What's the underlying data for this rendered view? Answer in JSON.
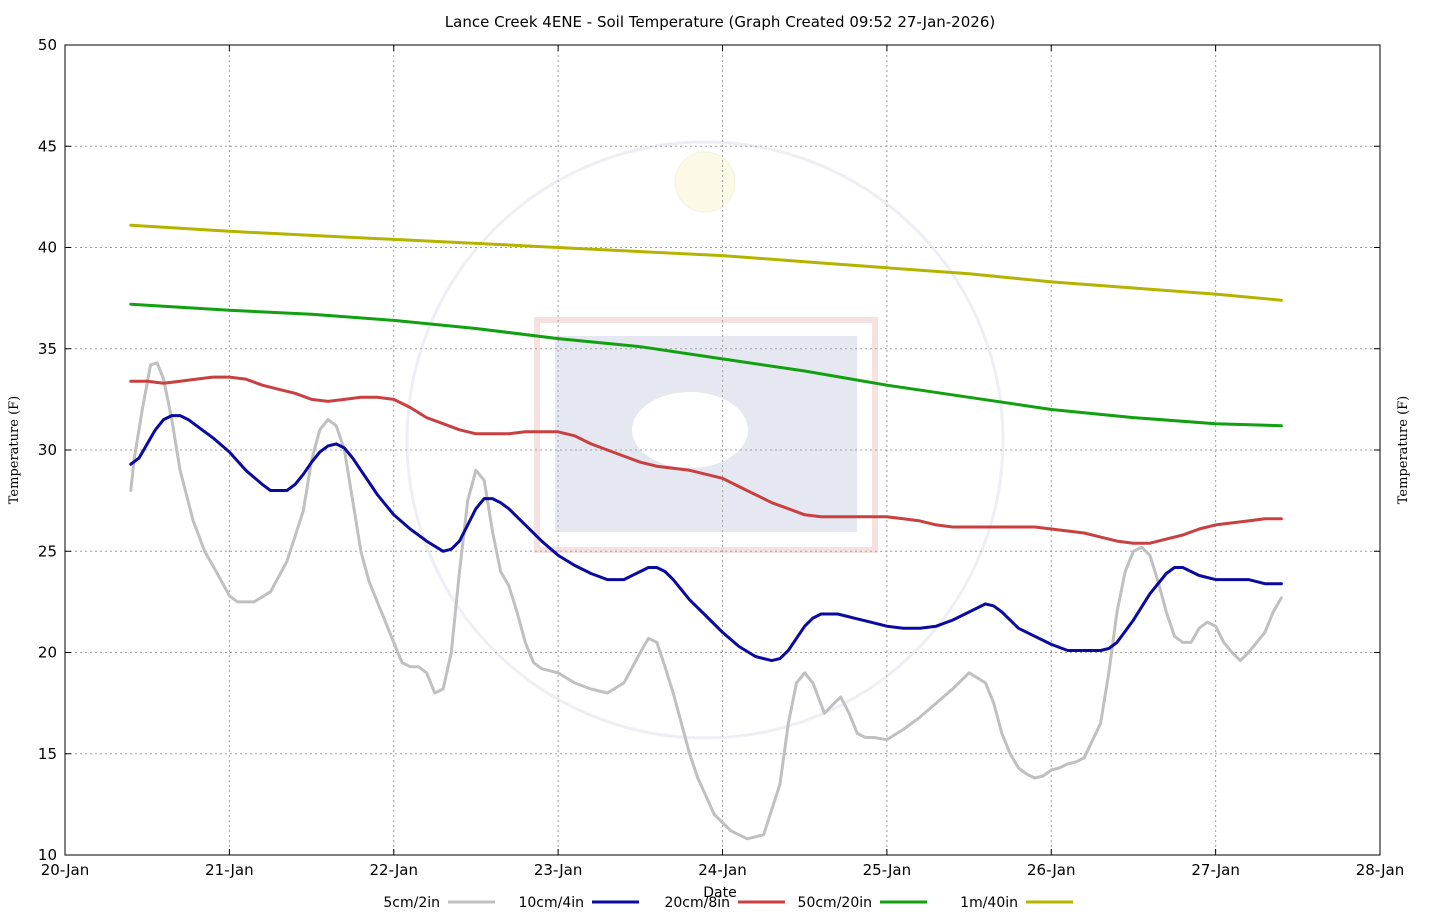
{
  "chart_data": {
    "type": "line",
    "title": "Lance Creek 4ENE - Soil Temperature (Graph Created 09:52 27-Jan-2026)",
    "xlabel": "Date",
    "ylabel_left": "Temperature (F)",
    "ylabel_right": "Temperature (F)",
    "ylim": [
      10,
      50
    ],
    "xlim": [
      0,
      8
    ],
    "y_ticks": [
      10,
      15,
      20,
      25,
      30,
      35,
      40,
      45,
      50
    ],
    "x_ticks": [
      {
        "x": 0,
        "label": "20-Jan"
      },
      {
        "x": 1,
        "label": "21-Jan"
      },
      {
        "x": 2,
        "label": "22-Jan"
      },
      {
        "x": 3,
        "label": "23-Jan"
      },
      {
        "x": 4,
        "label": "24-Jan"
      },
      {
        "x": 5,
        "label": "25-Jan"
      },
      {
        "x": 6,
        "label": "26-Jan"
      },
      {
        "x": 7,
        "label": "27-Jan"
      },
      {
        "x": 8,
        "label": "28-Jan"
      }
    ],
    "grid": true,
    "legend_position": "bottom",
    "series": [
      {
        "name": "5cm/2in",
        "color": "#c0c0c0",
        "x": [
          0.4,
          0.42,
          0.47,
          0.52,
          0.56,
          0.6,
          0.65,
          0.7,
          0.78,
          0.85,
          0.92,
          1.0,
          1.05,
          1.1,
          1.15,
          1.25,
          1.35,
          1.45,
          1.5,
          1.55,
          1.6,
          1.65,
          1.7,
          1.75,
          1.8,
          1.85,
          1.9,
          1.95,
          2.0,
          2.05,
          2.1,
          2.15,
          2.2,
          2.25,
          2.3,
          2.35,
          2.4,
          2.45,
          2.5,
          2.55,
          2.6,
          2.65,
          2.7,
          2.75,
          2.8,
          2.85,
          2.9,
          3.0,
          3.1,
          3.2,
          3.3,
          3.4,
          3.5,
          3.55,
          3.6,
          3.65,
          3.7,
          3.75,
          3.8,
          3.85,
          3.95,
          4.05,
          4.15,
          4.25,
          4.35,
          4.4,
          4.45,
          4.5,
          4.55,
          4.62,
          4.68,
          4.72,
          4.77,
          4.82,
          4.87,
          4.92,
          5.0,
          5.1,
          5.2,
          5.3,
          5.4,
          5.5,
          5.6,
          5.65,
          5.7,
          5.75,
          5.8,
          5.85,
          5.9,
          5.95,
          6.0,
          6.05,
          6.1,
          6.15,
          6.2,
          6.3,
          6.35,
          6.4,
          6.45,
          6.5,
          6.55,
          6.6,
          6.65,
          6.7,
          6.75,
          6.8,
          6.85,
          6.9,
          6.95,
          7.0,
          7.05,
          7.1,
          7.15,
          7.2,
          7.25,
          7.3,
          7.35,
          7.4
        ],
        "values": [
          28.0,
          29.5,
          32.0,
          34.2,
          34.3,
          33.5,
          31.5,
          29.0,
          26.5,
          25.0,
          24.0,
          22.8,
          22.5,
          22.5,
          22.5,
          23.0,
          24.5,
          27.0,
          29.5,
          31.0,
          31.5,
          31.2,
          30.0,
          27.5,
          25.0,
          23.5,
          22.5,
          21.5,
          20.5,
          19.5,
          19.3,
          19.3,
          19.0,
          18.0,
          18.2,
          20.0,
          24.0,
          27.5,
          29.0,
          28.5,
          26.0,
          24.0,
          23.3,
          22.0,
          20.5,
          19.5,
          19.2,
          19.0,
          18.5,
          18.2,
          18.0,
          18.5,
          20.0,
          20.7,
          20.5,
          19.3,
          18.0,
          16.5,
          15.0,
          13.8,
          12.0,
          11.2,
          10.8,
          11.0,
          13.5,
          16.5,
          18.5,
          19.0,
          18.5,
          17.0,
          17.5,
          17.8,
          17.0,
          16.0,
          15.8,
          15.8,
          15.7,
          16.2,
          16.8,
          17.5,
          18.2,
          19.0,
          18.5,
          17.5,
          16.0,
          15.0,
          14.3,
          14.0,
          13.8,
          13.9,
          14.2,
          14.3,
          14.5,
          14.6,
          14.8,
          16.5,
          19.0,
          22.0,
          24.0,
          25.0,
          25.2,
          24.8,
          23.5,
          22.0,
          20.8,
          20.5,
          20.5,
          21.2,
          21.5,
          21.3,
          20.5,
          20.0,
          19.6,
          20.0,
          20.5,
          21.0,
          22.0,
          22.7
        ]
      },
      {
        "name": "10cm/4in",
        "color": "#0a0aa0",
        "x": [
          0.4,
          0.45,
          0.5,
          0.55,
          0.6,
          0.65,
          0.7,
          0.75,
          0.8,
          0.9,
          1.0,
          1.1,
          1.2,
          1.25,
          1.3,
          1.35,
          1.4,
          1.45,
          1.5,
          1.55,
          1.6,
          1.65,
          1.7,
          1.75,
          1.8,
          1.85,
          1.9,
          2.0,
          2.1,
          2.2,
          2.3,
          2.35,
          2.4,
          2.45,
          2.5,
          2.55,
          2.6,
          2.65,
          2.7,
          2.75,
          2.8,
          2.9,
          3.0,
          3.1,
          3.2,
          3.3,
          3.4,
          3.5,
          3.55,
          3.6,
          3.65,
          3.7,
          3.75,
          3.8,
          3.9,
          4.0,
          4.1,
          4.2,
          4.3,
          4.35,
          4.4,
          4.45,
          4.5,
          4.55,
          4.6,
          4.65,
          4.7,
          4.75,
          4.8,
          4.85,
          4.9,
          5.0,
          5.1,
          5.2,
          5.3,
          5.4,
          5.5,
          5.6,
          5.65,
          5.7,
          5.75,
          5.8,
          5.9,
          6.0,
          6.1,
          6.2,
          6.3,
          6.35,
          6.4,
          6.5,
          6.6,
          6.7,
          6.75,
          6.8,
          6.85,
          6.9,
          7.0,
          7.1,
          7.2,
          7.3,
          7.4
        ],
        "values": [
          29.3,
          29.6,
          30.3,
          31.0,
          31.5,
          31.7,
          31.7,
          31.5,
          31.2,
          30.6,
          29.9,
          29.0,
          28.3,
          28.0,
          28.0,
          28.0,
          28.3,
          28.8,
          29.4,
          29.9,
          30.2,
          30.3,
          30.1,
          29.6,
          29.0,
          28.4,
          27.8,
          26.8,
          26.1,
          25.5,
          25.0,
          25.1,
          25.5,
          26.3,
          27.1,
          27.6,
          27.6,
          27.4,
          27.1,
          26.7,
          26.3,
          25.5,
          24.8,
          24.3,
          23.9,
          23.6,
          23.6,
          24.0,
          24.2,
          24.2,
          24.0,
          23.6,
          23.1,
          22.6,
          21.8,
          21.0,
          20.3,
          19.8,
          19.6,
          19.7,
          20.1,
          20.7,
          21.3,
          21.7,
          21.9,
          21.9,
          21.9,
          21.8,
          21.7,
          21.6,
          21.5,
          21.3,
          21.2,
          21.2,
          21.3,
          21.6,
          22.0,
          22.4,
          22.3,
          22.0,
          21.6,
          21.2,
          20.8,
          20.4,
          20.1,
          20.1,
          20.1,
          20.2,
          20.5,
          21.6,
          22.9,
          23.9,
          24.2,
          24.2,
          24.0,
          23.8,
          23.6,
          23.6,
          23.6,
          23.4,
          23.4
        ]
      },
      {
        "name": "20cm/8in",
        "color": "#c84040",
        "x": [
          0.4,
          0.5,
          0.6,
          0.7,
          0.8,
          0.9,
          1.0,
          1.1,
          1.2,
          1.3,
          1.4,
          1.5,
          1.6,
          1.7,
          1.8,
          1.9,
          2.0,
          2.1,
          2.2,
          2.3,
          2.4,
          2.5,
          2.6,
          2.7,
          2.8,
          2.9,
          3.0,
          3.1,
          3.2,
          3.3,
          3.4,
          3.5,
          3.6,
          3.7,
          3.8,
          3.9,
          4.0,
          4.1,
          4.2,
          4.3,
          4.4,
          4.5,
          4.6,
          4.7,
          4.8,
          4.9,
          5.0,
          5.1,
          5.2,
          5.3,
          5.4,
          5.5,
          5.6,
          5.7,
          5.8,
          5.9,
          6.0,
          6.1,
          6.2,
          6.3,
          6.4,
          6.5,
          6.6,
          6.7,
          6.8,
          6.9,
          7.0,
          7.1,
          7.2,
          7.3,
          7.4
        ],
        "values": [
          33.4,
          33.4,
          33.3,
          33.4,
          33.5,
          33.6,
          33.6,
          33.5,
          33.2,
          33.0,
          32.8,
          32.5,
          32.4,
          32.5,
          32.6,
          32.6,
          32.5,
          32.1,
          31.6,
          31.3,
          31.0,
          30.8,
          30.8,
          30.8,
          30.9,
          30.9,
          30.9,
          30.7,
          30.3,
          30.0,
          29.7,
          29.4,
          29.2,
          29.1,
          29.0,
          28.8,
          28.6,
          28.2,
          27.8,
          27.4,
          27.1,
          26.8,
          26.7,
          26.7,
          26.7,
          26.7,
          26.7,
          26.6,
          26.5,
          26.3,
          26.2,
          26.2,
          26.2,
          26.2,
          26.2,
          26.2,
          26.1,
          26.0,
          25.9,
          25.7,
          25.5,
          25.4,
          25.4,
          25.6,
          25.8,
          26.1,
          26.3,
          26.4,
          26.5,
          26.6,
          26.6
        ]
      },
      {
        "name": "50cm/20in",
        "color": "#10a010",
        "x": [
          0.4,
          1.0,
          1.5,
          2.0,
          2.5,
          3.0,
          3.5,
          4.0,
          4.5,
          5.0,
          5.5,
          6.0,
          6.5,
          7.0,
          7.4
        ],
        "values": [
          37.2,
          36.9,
          36.7,
          36.4,
          36.0,
          35.5,
          35.1,
          34.5,
          33.9,
          33.2,
          32.6,
          32.0,
          31.6,
          31.3,
          31.2
        ]
      },
      {
        "name": "1m/40in",
        "color": "#b4b400",
        "x": [
          0.4,
          1.0,
          1.5,
          2.0,
          2.5,
          3.0,
          3.5,
          4.0,
          4.5,
          5.0,
          5.5,
          6.0,
          6.5,
          7.0,
          7.4
        ],
        "values": [
          41.1,
          40.8,
          40.6,
          40.4,
          40.2,
          40.0,
          39.8,
          39.6,
          39.3,
          39.0,
          38.7,
          38.3,
          38.0,
          37.7,
          37.4
        ]
      }
    ]
  }
}
